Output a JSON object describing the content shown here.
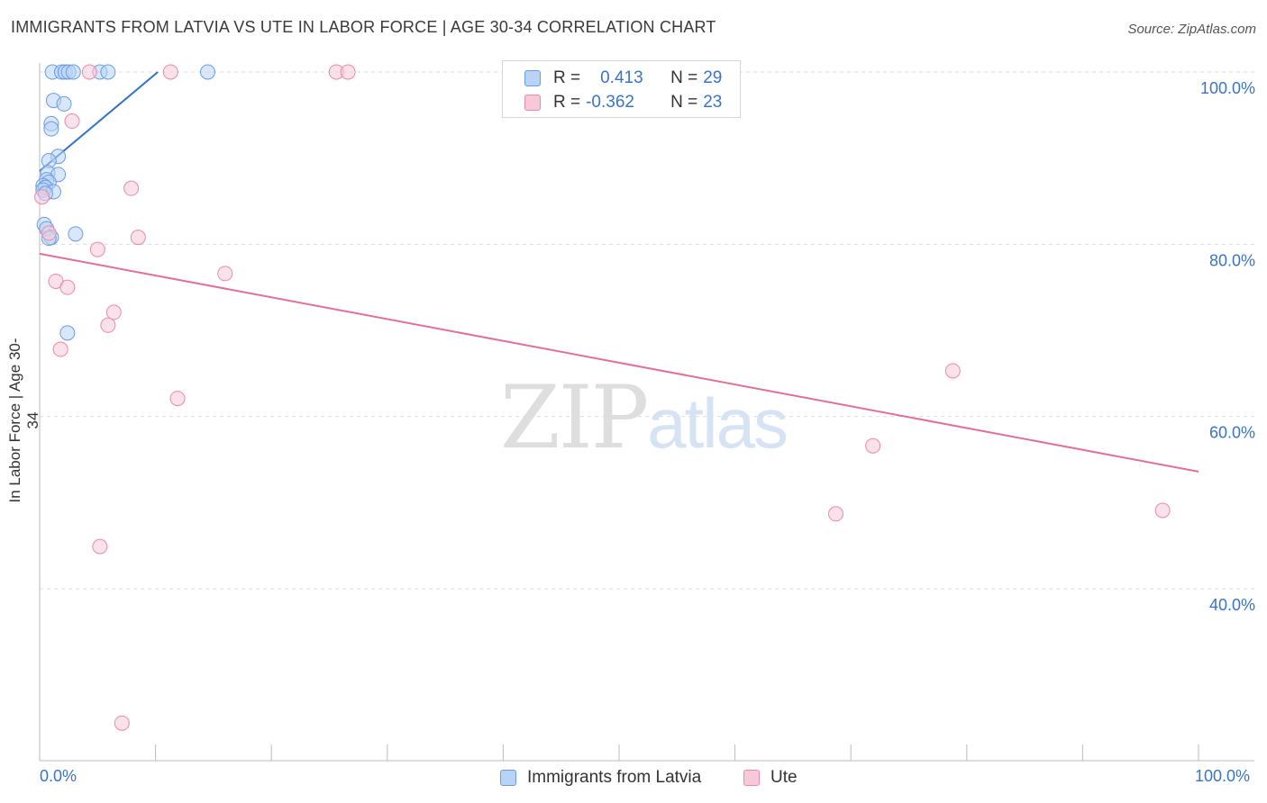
{
  "title": "IMMIGRANTS FROM LATVIA VS UTE IN LABOR FORCE | AGE 30-34 CORRELATION CHART",
  "source": "Source: ZipAtlas.com",
  "watermark": {
    "zip": "ZIP",
    "atlas": "atlas"
  },
  "stats_legend": {
    "row1": {
      "r_label": "R =",
      "r_value": "0.413",
      "n_label": "N =",
      "n_value": "29"
    },
    "row2": {
      "r_label": "R =",
      "r_value": "-0.362",
      "n_label": "N =",
      "n_value": "23"
    }
  },
  "colors": {
    "blue_fill": "#b9d3f5",
    "blue_stroke": "#6a9ce0",
    "blue_line": "#2f73c9",
    "pink_fill": "#f7c8d8",
    "pink_stroke": "#e88aa9",
    "pink_line": "#e0709a",
    "tick_label": "#3a73c7",
    "grid": "#dddddd"
  },
  "chart_data": {
    "type": "scatter",
    "xlabel": "",
    "ylabel": "In Labor Force | Age 30-34",
    "xlim": [
      0,
      100
    ],
    "ylim": [
      20,
      101
    ],
    "x_tick_labels": [
      {
        "value": 0,
        "label": "0.0%"
      },
      {
        "value": 100,
        "label": "100.0%"
      }
    ],
    "y_tick_labels": [
      {
        "value": 40,
        "label": "40.0%"
      },
      {
        "value": 60,
        "label": "60.0%"
      },
      {
        "value": 80,
        "label": "80.0%"
      },
      {
        "value": 100,
        "label": "100.0%"
      }
    ],
    "y_gridlines": [
      40,
      60,
      80,
      100
    ],
    "legend_position": "bottom-center",
    "series": [
      {
        "name": "Immigrants from Latvia",
        "color": "#6a9ce0",
        "points": [
          [
            1.1,
            100
          ],
          [
            1.9,
            100
          ],
          [
            2.2,
            100
          ],
          [
            2.5,
            100
          ],
          [
            2.9,
            100
          ],
          [
            5.2,
            100
          ],
          [
            5.9,
            100
          ],
          [
            14.5,
            100
          ],
          [
            1.2,
            96.7
          ],
          [
            2.1,
            96.3
          ],
          [
            1.0,
            94.0
          ],
          [
            1.0,
            93.4
          ],
          [
            1.6,
            90.2
          ],
          [
            0.8,
            89.7
          ],
          [
            0.7,
            88.3
          ],
          [
            1.6,
            88.1
          ],
          [
            0.6,
            87.5
          ],
          [
            0.8,
            87.2
          ],
          [
            0.3,
            86.8
          ],
          [
            0.5,
            86.6
          ],
          [
            0.3,
            86.3
          ],
          [
            1.2,
            86.1
          ],
          [
            0.5,
            85.9
          ],
          [
            0.4,
            82.3
          ],
          [
            0.6,
            81.8
          ],
          [
            3.1,
            81.2
          ],
          [
            1.0,
            80.8
          ],
          [
            0.8,
            80.7
          ],
          [
            2.4,
            69.7
          ]
        ],
        "trend": {
          "x": [
            0,
            10.2
          ],
          "y": [
            88.5,
            100
          ]
        }
      },
      {
        "name": "Ute",
        "color": "#e88aa9",
        "points": [
          [
            4.3,
            100
          ],
          [
            11.3,
            100
          ],
          [
            25.6,
            100
          ],
          [
            26.6,
            100
          ],
          [
            2.8,
            94.3
          ],
          [
            7.9,
            86.5
          ],
          [
            0.2,
            85.5
          ],
          [
            0.8,
            81.3
          ],
          [
            8.5,
            80.8
          ],
          [
            5.0,
            79.4
          ],
          [
            16.0,
            76.6
          ],
          [
            1.4,
            75.7
          ],
          [
            2.4,
            75.0
          ],
          [
            6.4,
            72.1
          ],
          [
            5.9,
            70.6
          ],
          [
            1.8,
            67.8
          ],
          [
            78.8,
            65.3
          ],
          [
            11.9,
            62.1
          ],
          [
            71.9,
            56.6
          ],
          [
            68.7,
            48.7
          ],
          [
            96.9,
            49.1
          ],
          [
            5.2,
            44.9
          ],
          [
            7.1,
            24.4
          ]
        ],
        "trend": {
          "x": [
            0,
            100
          ],
          "y": [
            78.9,
            53.6
          ]
        }
      }
    ]
  }
}
